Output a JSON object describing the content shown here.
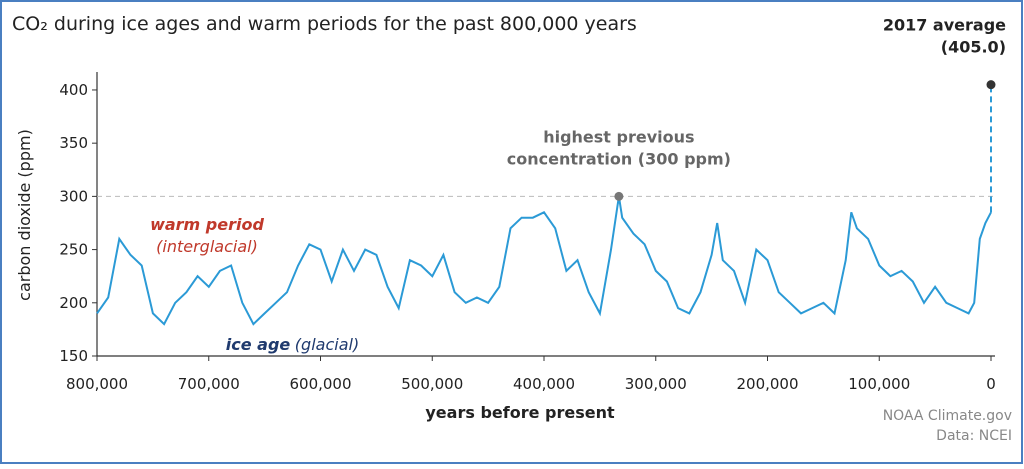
{
  "chart_data": {
    "type": "line",
    "title": "CO₂ during ice ages and warm periods for the past 800,000 years",
    "y_label": "carbon dioxide (ppm)",
    "x_label": "years before present",
    "credit": [
      "NOAA Climate.gov",
      "Data: NCEI"
    ],
    "annotations": {
      "warm": [
        "warm period",
        "(interglacial)"
      ],
      "ice": [
        "ice age",
        "(glacial)"
      ]
    },
    "highlights": [
      {
        "label": [
          "highest previous",
          "concentration (300 ppm)"
        ],
        "x": 333000,
        "y": 300
      },
      {
        "label": [
          "2017 average"
        ],
        "x": 0,
        "y": 405,
        "value_label": "(405.0)"
      }
    ],
    "xlim": [
      800000,
      0
    ],
    "xticks": [
      {
        "value": 800000,
        "label": "800,000"
      },
      {
        "value": 700000,
        "label": "700,000"
      },
      {
        "value": 600000,
        "label": "600,000"
      },
      {
        "value": 500000,
        "label": "500,000"
      },
      {
        "value": 400000,
        "label": "400,000"
      },
      {
        "value": 300000,
        "label": "300,000"
      },
      {
        "value": 200000,
        "label": "200,000"
      },
      {
        "value": 100000,
        "label": "100,000"
      },
      0
    ],
    "ylim": [
      150,
      415
    ],
    "yticks": [
      150,
      200,
      250,
      300,
      350,
      400
    ],
    "series": [
      {
        "name": "CO2",
        "color": "#2b9ad6",
        "x": [
          800000,
          790000,
          780000,
          770000,
          760000,
          750000,
          740000,
          730000,
          720000,
          710000,
          700000,
          690000,
          680000,
          670000,
          660000,
          650000,
          640000,
          630000,
          620000,
          610000,
          600000,
          590000,
          580000,
          570000,
          560000,
          550000,
          540000,
          530000,
          520000,
          510000,
          500000,
          490000,
          480000,
          470000,
          460000,
          450000,
          440000,
          430000,
          420000,
          410000,
          400000,
          390000,
          380000,
          370000,
          360000,
          350000,
          340000,
          333000,
          330000,
          320000,
          310000,
          300000,
          290000,
          280000,
          270000,
          260000,
          250000,
          245000,
          240000,
          230000,
          220000,
          210000,
          200000,
          190000,
          180000,
          170000,
          160000,
          150000,
          140000,
          130000,
          125000,
          120000,
          110000,
          100000,
          90000,
          80000,
          70000,
          60000,
          50000,
          40000,
          30000,
          20000,
          15000,
          10000,
          5000,
          0
        ],
        "values": [
          190,
          205,
          260,
          245,
          235,
          190,
          180,
          200,
          210,
          225,
          215,
          230,
          235,
          200,
          180,
          190,
          200,
          210,
          235,
          255,
          250,
          220,
          250,
          230,
          250,
          245,
          215,
          195,
          240,
          235,
          225,
          245,
          210,
          200,
          205,
          200,
          215,
          270,
          280,
          280,
          285,
          270,
          230,
          240,
          210,
          190,
          250,
          300,
          280,
          265,
          255,
          230,
          220,
          195,
          190,
          210,
          245,
          275,
          240,
          230,
          200,
          250,
          240,
          210,
          200,
          190,
          195,
          200,
          190,
          240,
          285,
          270,
          260,
          235,
          225,
          230,
          220,
          200,
          215,
          200,
          195,
          190,
          200,
          260,
          275,
          285
        ]
      }
    ]
  }
}
